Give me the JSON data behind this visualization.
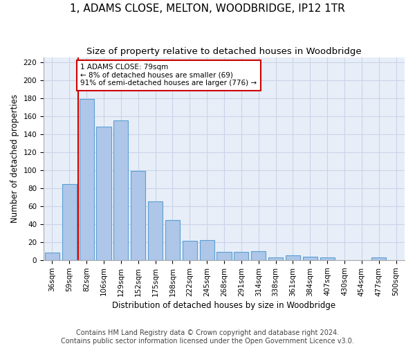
{
  "title": "1, ADAMS CLOSE, MELTON, WOODBRIDGE, IP12 1TR",
  "subtitle": "Size of property relative to detached houses in Woodbridge",
  "xlabel": "Distribution of detached houses by size in Woodbridge",
  "ylabel": "Number of detached properties",
  "footnote1": "Contains HM Land Registry data © Crown copyright and database right 2024.",
  "footnote2": "Contains public sector information licensed under the Open Government Licence v3.0.",
  "bar_labels": [
    "36sqm",
    "59sqm",
    "82sqm",
    "106sqm",
    "129sqm",
    "152sqm",
    "175sqm",
    "198sqm",
    "222sqm",
    "245sqm",
    "268sqm",
    "291sqm",
    "314sqm",
    "338sqm",
    "361sqm",
    "384sqm",
    "407sqm",
    "430sqm",
    "454sqm",
    "477sqm",
    "500sqm"
  ],
  "bar_values": [
    8,
    84,
    179,
    148,
    155,
    99,
    65,
    44,
    21,
    22,
    9,
    9,
    10,
    3,
    5,
    4,
    3,
    0,
    0,
    3,
    0
  ],
  "bar_color": "#aec6e8",
  "bar_edge_color": "#5a9fd4",
  "vline_color": "#cc0000",
  "vline_x_index": 1.5,
  "annotation_text": "1 ADAMS CLOSE: 79sqm\n← 8% of detached houses are smaller (69)\n91% of semi-detached houses are larger (776) →",
  "annotation_box_color": "white",
  "annotation_box_edge": "#cc0000",
  "ylim": [
    0,
    225
  ],
  "yticks": [
    0,
    20,
    40,
    60,
    80,
    100,
    120,
    140,
    160,
    180,
    200,
    220
  ],
  "title_fontsize": 11,
  "subtitle_fontsize": 9.5,
  "axis_label_fontsize": 8.5,
  "tick_fontsize": 7.5,
  "annotation_fontsize": 7.5,
  "footnote_fontsize": 7,
  "grid_color": "#c8d4e8",
  "background_color": "#e8eef8"
}
